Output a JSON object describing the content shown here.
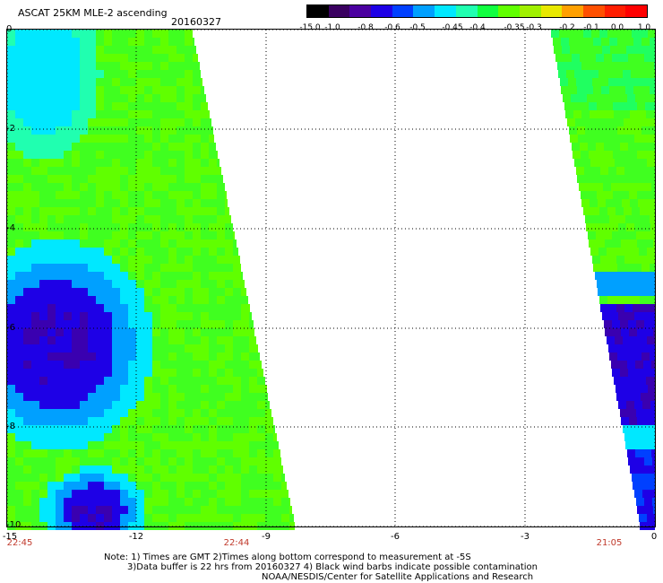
{
  "header": {
    "title": "ASCAT 25KM MLE-2 ascending",
    "date": "20160327"
  },
  "colorbar": {
    "labels": [
      "-15.0",
      "-1.0",
      "-0.8",
      "-0.6",
      "-0.5",
      "-0.45",
      "-0.4",
      "-0.35",
      "-0.3",
      "-0.2",
      "-0.1",
      "0.0",
      "1.0"
    ],
    "colors": [
      "#000000",
      "#3a0060",
      "#4b00a0",
      "#1e00e6",
      "#0040ff",
      "#00a0ff",
      "#00e8ff",
      "#20ffb0",
      "#10ff40",
      "#60ff00",
      "#a0f000",
      "#e8e800",
      "#ffa000",
      "#ff5000",
      "#ff1e00",
      "#ff0000"
    ]
  },
  "axes": {
    "y_labels": [
      "0",
      "-2",
      "-4",
      "-6",
      "-8",
      "-10"
    ],
    "x_labels": [
      "-15",
      "-12",
      "-9",
      "-6",
      "-3",
      "0"
    ],
    "time_labels": [
      "22:45",
      "22:44",
      "21:05"
    ]
  },
  "notes": {
    "line1": "Note: 1) Times are GMT 2)Times along bottom correspond to measurement at -5S",
    "line2": "3)Data buffer is 22 hrs from 20160327 4) Black wind barbs indicate possible contamination",
    "line3": "NOAA/NESDIS/Center for Satellite Applications and Research"
  },
  "colors": {
    "time_label": "#c0392b",
    "grid": "#000000"
  }
}
